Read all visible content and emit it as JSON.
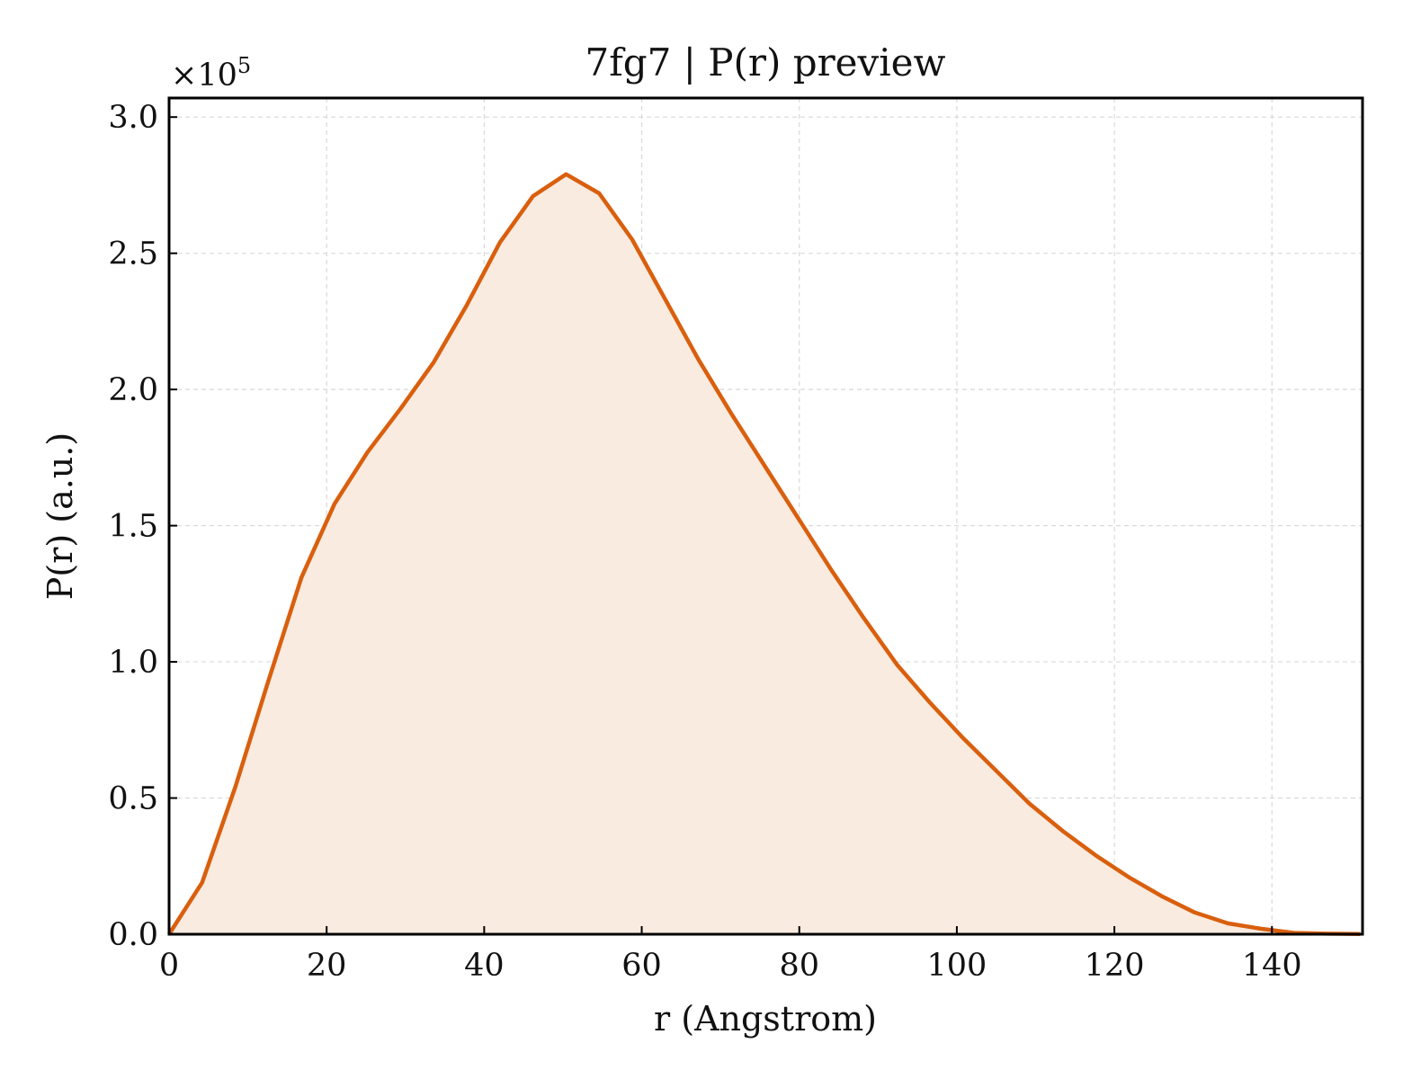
{
  "chart_data": {
    "type": "area",
    "title": "7fg7 | P(r) preview",
    "xlabel": "r (Angstrom)",
    "ylabel": "P(r) (a.u.)",
    "y_multiplier_base": "×10",
    "y_multiplier_exp": "5",
    "xlim": [
      0,
      151.5
    ],
    "ylim": [
      0,
      3.07
    ],
    "y_scale_factor": 100000,
    "grid": true,
    "line_color": "#d95f0e",
    "fill_color": "#f9ebe0",
    "x_ticks": [
      0,
      20,
      40,
      60,
      80,
      100,
      120,
      140
    ],
    "x_tick_labels": [
      "0",
      "20",
      "40",
      "60",
      "80",
      "100",
      "120",
      "140"
    ],
    "y_ticks": [
      0,
      0.5,
      1.0,
      1.5,
      2.0,
      2.5,
      3.0
    ],
    "y_tick_labels": [
      "0.0",
      "0.5",
      "1.0",
      "1.5",
      "2.0",
      "2.5",
      "3.0"
    ],
    "series": [
      {
        "x": [
          0,
          4.2,
          8.4,
          12.6,
          16.8,
          21.0,
          25.2,
          29.4,
          33.6,
          37.8,
          42.0,
          46.2,
          50.4,
          54.6,
          58.8,
          63.0,
          67.2,
          71.4,
          75.6,
          79.8,
          84.0,
          88.2,
          92.4,
          96.6,
          100.8,
          105.0,
          109.2,
          113.4,
          117.6,
          121.8,
          126.0,
          130.2,
          134.4,
          138.6,
          142.8,
          147.0,
          151.2
        ],
        "y": [
          0,
          0.19,
          0.54,
          0.93,
          1.31,
          1.58,
          1.77,
          1.93,
          2.1,
          2.31,
          2.54,
          2.71,
          2.79,
          2.72,
          2.55,
          2.33,
          2.11,
          1.91,
          1.72,
          1.53,
          1.34,
          1.16,
          0.99,
          0.85,
          0.72,
          0.6,
          0.48,
          0.38,
          0.29,
          0.21,
          0.14,
          0.08,
          0.04,
          0.02,
          0.005,
          0.002,
          0.001
        ]
      }
    ]
  }
}
